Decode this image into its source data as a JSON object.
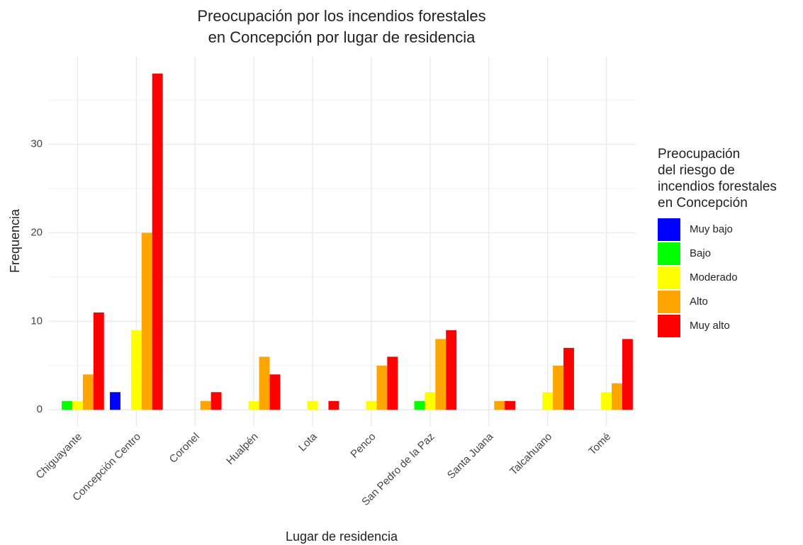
{
  "chart_data": {
    "type": "bar",
    "title": [
      "Preocupación por los incendios forestales",
      "en Concepción por lugar de residencia"
    ],
    "x_label": "Lugar de residencia",
    "y_label": "Frequencia",
    "categories": [
      "Chiguayante",
      "Concepción Centro",
      "Coronel",
      "Hualpén",
      "Lota",
      "Penco",
      "San Pedro de la Paz",
      "Santa Juana",
      "Talcahuano",
      "Tomé"
    ],
    "series": [
      {
        "name": "Muy bajo",
        "color": "#0000ff",
        "values": [
          null,
          2,
          null,
          null,
          null,
          null,
          null,
          null,
          null,
          null
        ]
      },
      {
        "name": "Bajo",
        "color": "#00ff00",
        "values": [
          1,
          null,
          null,
          null,
          null,
          null,
          1,
          null,
          null,
          null
        ]
      },
      {
        "name": "Moderado",
        "color": "#ffff00",
        "values": [
          1,
          9,
          null,
          1,
          1,
          1,
          2,
          null,
          2,
          2
        ]
      },
      {
        "name": "Alto",
        "color": "#ffa500",
        "values": [
          4,
          20,
          1,
          6,
          null,
          5,
          8,
          1,
          5,
          3
        ]
      },
      {
        "name": "Muy alto",
        "color": "#ff0000",
        "values": [
          11,
          38,
          2,
          4,
          1,
          6,
          9,
          1,
          7,
          8
        ]
      }
    ],
    "legend_title": [
      "Preocupación",
      "del riesgo de",
      "incendios forestales",
      "en Concepción"
    ],
    "legend_position": "right",
    "ylim": [
      -1.9,
      39.9
    ],
    "yticks": [
      0,
      10,
      20,
      30
    ],
    "minor_yticks": [
      5,
      15,
      25,
      35
    ],
    "grid": true
  }
}
